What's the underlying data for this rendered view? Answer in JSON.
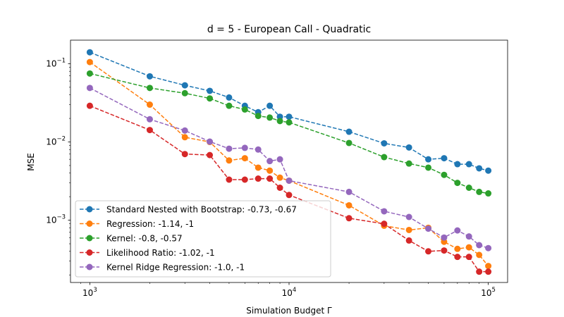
{
  "chart_data": {
    "type": "line",
    "title": "d = 5 - European Call - Quadratic",
    "xlabel": "Simulation Budget Γ",
    "ylabel": "MSE",
    "xscale": "log",
    "yscale": "log",
    "xlim": [
      800,
      125000
    ],
    "ylim": [
      0.00016,
      0.2
    ],
    "grid": false,
    "legend_position": "lower-left",
    "x_ticks": [
      {
        "base": "10",
        "exp": "3",
        "value": 1000
      },
      {
        "base": "10",
        "exp": "4",
        "value": 10000
      },
      {
        "base": "10",
        "exp": "5",
        "value": 100000
      }
    ],
    "y_ticks": [
      {
        "base": "10",
        "exp": "−1",
        "value": 0.1
      },
      {
        "base": "10",
        "exp": "−2",
        "value": 0.01
      },
      {
        "base": "10",
        "exp": "−3",
        "value": 0.001
      }
    ],
    "x": [
      1000,
      2000,
      3000,
      4000,
      5000,
      6000,
      7000,
      8000,
      9000,
      10000,
      20000,
      30000,
      40000,
      50000,
      60000,
      70000,
      80000,
      90000,
      100000
    ],
    "series": [
      {
        "name": "Standard Nested with Bootstrap: -0.73, -0.67",
        "color": "#1f77b4",
        "values": [
          0.14,
          0.069,
          0.053,
          0.045,
          0.037,
          0.029,
          0.024,
          0.029,
          0.021,
          0.021,
          0.0135,
          0.0096,
          0.0085,
          0.006,
          0.0062,
          0.0052,
          0.0052,
          0.0046,
          0.0043
        ]
      },
      {
        "name": "Regression: -1.14, -1",
        "color": "#ff7f0e",
        "values": [
          0.105,
          0.03,
          0.0115,
          0.01,
          0.0058,
          0.0062,
          0.0047,
          0.0043,
          0.0035,
          0.0032,
          0.00155,
          0.00085,
          0.00075,
          0.0008,
          0.00053,
          0.00043,
          0.00045,
          0.00036,
          0.00026
        ]
      },
      {
        "name": "Kernel: -0.8, -0.57",
        "color": "#2ca02c",
        "values": [
          0.075,
          0.049,
          0.042,
          0.036,
          0.029,
          0.026,
          0.0215,
          0.0205,
          0.0185,
          0.0178,
          0.0097,
          0.0064,
          0.0053,
          0.0047,
          0.0038,
          0.003,
          0.0026,
          0.0023,
          0.0022
        ]
      },
      {
        "name": "Likelihood Ratio: -1.02, -1",
        "color": "#d62728",
        "values": [
          0.029,
          0.0142,
          0.007,
          0.0068,
          0.0033,
          0.0033,
          0.0034,
          0.0034,
          0.0026,
          0.0021,
          0.00106,
          0.0009,
          0.00055,
          0.0004,
          0.00041,
          0.00034,
          0.00034,
          0.00022,
          0.00022
        ]
      },
      {
        "name": "Kernel Ridge Regression: -1.0, -1",
        "color": "#9467bd",
        "values": [
          0.049,
          0.0195,
          0.014,
          0.0101,
          0.0082,
          0.0084,
          0.008,
          0.0057,
          0.006,
          0.0032,
          0.0023,
          0.0013,
          0.0011,
          0.00078,
          0.0006,
          0.00074,
          0.00062,
          0.00048,
          0.00044
        ]
      }
    ]
  }
}
